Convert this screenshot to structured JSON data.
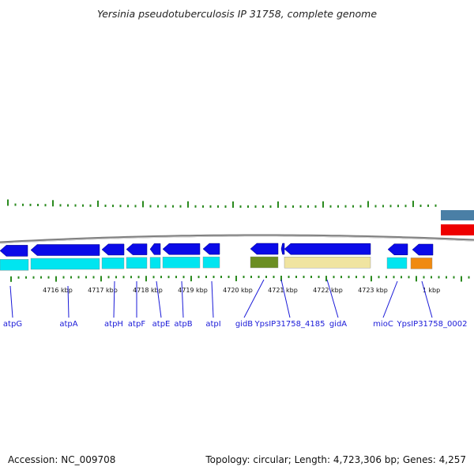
{
  "title": "Yersinia pseudotuberculosis IP 31758, complete genome",
  "footer": {
    "accession": "Accession: NC_009708",
    "topology": "Topology: circular; Length: 4,723,306 bp; Genes: 4,257"
  },
  "colors": {
    "cds": "#0a0ae8",
    "cds_gc": "#00e5f0",
    "gid_b_box": "#6b8e23",
    "gid_a_box": "#f0e4a0",
    "orange_box": "#f08a10",
    "red_bar": "#ee0000",
    "steel_bar": "#4a7fa6",
    "tick_green": "#2a8a1e",
    "label_blue": "#1a1ad8",
    "backbone": "#808080"
  },
  "kbp_ticks": [
    "4716 kbp",
    "4717 kbp",
    "4718 kbp",
    "4719 kbp",
    "4720 kbp",
    "4721 kbp",
    "4722 kbp",
    "4723 kbp",
    "1 kbp"
  ],
  "gene_labels": [
    "atpG",
    "atpA",
    "atpH",
    "atpF",
    "atpE",
    "atpB",
    "atpI",
    "gidB",
    "YpsIP31758_4185",
    "gidA",
    "mioC",
    "YpsIP31758_0002"
  ]
}
